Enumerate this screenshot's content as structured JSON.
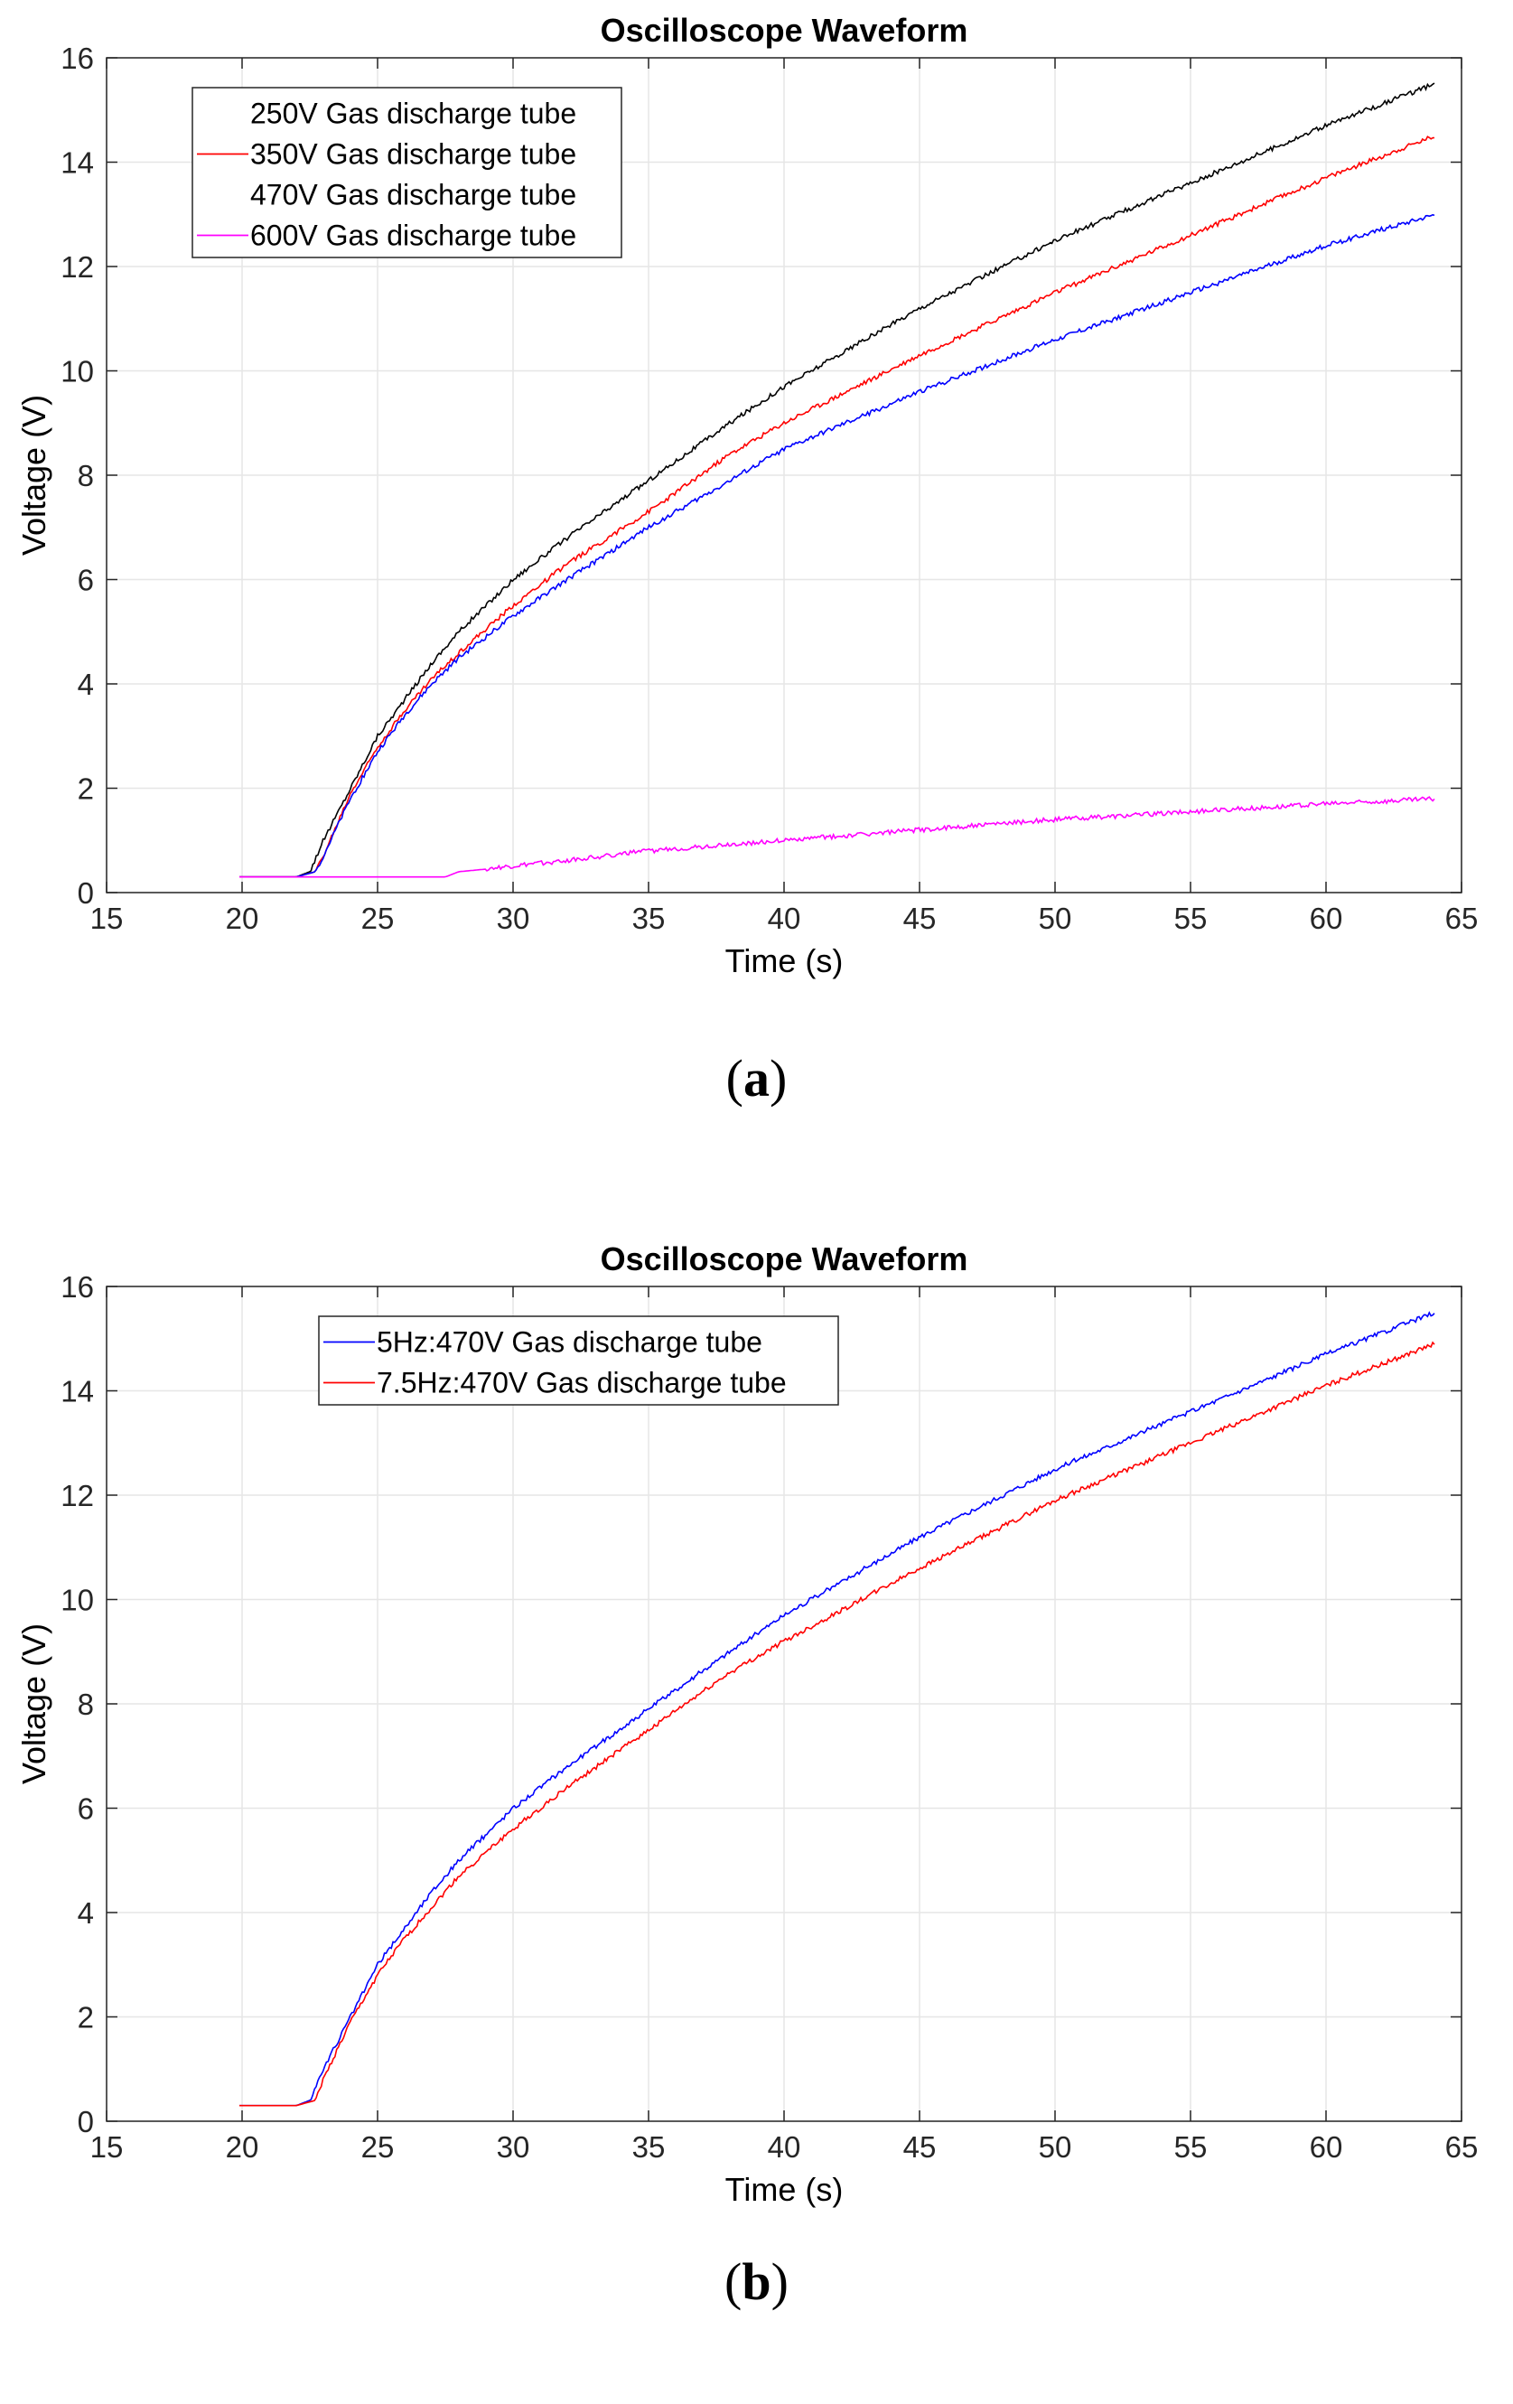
{
  "chart_data": [
    {
      "id": "a",
      "panel_label": "a",
      "type": "line",
      "title": "Oscilloscope Waveform",
      "xlabel": "Time (s)",
      "ylabel": "Voltage (V)",
      "xlim": [
        15,
        65
      ],
      "ylim": [
        0,
        16
      ],
      "xticks": [
        15,
        20,
        25,
        30,
        35,
        40,
        45,
        50,
        55,
        60,
        65
      ],
      "yticks": [
        0,
        2,
        4,
        6,
        8,
        10,
        12,
        14,
        16
      ],
      "grid": true,
      "legend_position": "top-left",
      "series": [
        {
          "name": "250V Gas discharge tube",
          "color": "#000000",
          "legend_swatch": false,
          "x": [
            19.9,
            21,
            22,
            22.5,
            23,
            24,
            25,
            26,
            27,
            28,
            30,
            32,
            35,
            38,
            40,
            45,
            50,
            55,
            60,
            64
          ],
          "y": [
            0.3,
            0.3,
            0.3,
            0.4,
            1.0,
            2.0,
            3.0,
            3.7,
            4.4,
            5.0,
            6.0,
            6.8,
            7.9,
            9.0,
            9.7,
            11.2,
            12.5,
            13.6,
            14.7,
            15.5
          ]
        },
        {
          "name": "350V Gas discharge tube",
          "color": "#ff0000",
          "legend_swatch": true,
          "x": [
            19.9,
            21,
            22,
            22.7,
            23,
            24,
            25,
            26,
            27,
            28,
            30,
            32,
            35,
            38,
            40,
            45,
            50,
            55,
            60,
            64
          ],
          "y": [
            0.3,
            0.3,
            0.3,
            0.4,
            0.7,
            1.9,
            2.8,
            3.5,
            4.1,
            4.6,
            5.5,
            6.3,
            7.3,
            8.4,
            9.0,
            10.3,
            11.5,
            12.6,
            13.7,
            14.5
          ]
        },
        {
          "name": "470V Gas discharge tube",
          "color": "#0000ff",
          "legend_swatch": false,
          "x": [
            19.9,
            21,
            22,
            22.7,
            23,
            24,
            25,
            26,
            27,
            28,
            30,
            32,
            35,
            38,
            40,
            45,
            50,
            55,
            60,
            64
          ],
          "y": [
            0.3,
            0.3,
            0.3,
            0.4,
            0.7,
            1.8,
            2.7,
            3.4,
            4.0,
            4.5,
            5.3,
            6.0,
            7.0,
            7.9,
            8.5,
            9.6,
            10.6,
            11.5,
            12.4,
            13.0
          ]
        },
        {
          "name": "600V Gas discharge tube",
          "color": "#ff00ff",
          "legend_swatch": true,
          "x": [
            19.9,
            22,
            25,
            27.5,
            28,
            30,
            35,
            40,
            45,
            50,
            55,
            60,
            64
          ],
          "y": [
            0.3,
            0.3,
            0.3,
            0.3,
            0.4,
            0.5,
            0.8,
            1.0,
            1.2,
            1.4,
            1.55,
            1.7,
            1.8
          ]
        }
      ]
    },
    {
      "id": "b",
      "panel_label": "b",
      "type": "line",
      "title": "Oscilloscope Waveform",
      "xlabel": "Time (s)",
      "ylabel": "Voltage (V)",
      "xlim": [
        15,
        65
      ],
      "ylim": [
        0,
        16
      ],
      "xticks": [
        15,
        20,
        25,
        30,
        35,
        40,
        45,
        50,
        55,
        60,
        65
      ],
      "yticks": [
        0,
        2,
        4,
        6,
        8,
        10,
        12,
        14,
        16
      ],
      "grid": true,
      "legend_position": "top-left",
      "series": [
        {
          "name": "5Hz:470V Gas discharge tube",
          "color": "#0000ff",
          "legend_swatch": true,
          "x": [
            19.9,
            21,
            22,
            22.5,
            23,
            24,
            25,
            26,
            27,
            28,
            30,
            32,
            35,
            38,
            40,
            45,
            50,
            55,
            60,
            64
          ],
          "y": [
            0.3,
            0.3,
            0.3,
            0.4,
            1.0,
            2.0,
            3.0,
            3.7,
            4.4,
            5.0,
            6.0,
            6.8,
            7.9,
            9.0,
            9.7,
            11.2,
            12.5,
            13.6,
            14.7,
            15.5
          ]
        },
        {
          "name": "7.5Hz:470V Gas discharge tube",
          "color": "#ff0000",
          "legend_swatch": true,
          "x": [
            19.9,
            21,
            22,
            22.7,
            23,
            24,
            25,
            26,
            27,
            28,
            30,
            32,
            35,
            38,
            40,
            45,
            50,
            55,
            60,
            64
          ],
          "y": [
            0.3,
            0.3,
            0.3,
            0.4,
            0.8,
            1.9,
            2.8,
            3.5,
            4.1,
            4.7,
            5.6,
            6.4,
            7.5,
            8.6,
            9.2,
            10.6,
            11.9,
            13.0,
            14.1,
            14.9
          ]
        }
      ]
    }
  ]
}
